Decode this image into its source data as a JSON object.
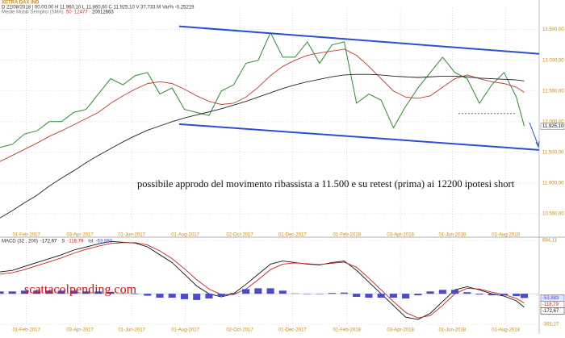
{
  "chart_data": [
    {
      "type": "line",
      "title": "XETRA DAX IND",
      "subtitle": "D 22/08/2018 | 00.00.00  H 11.960,10  L 11.860,60  C 11.925,10  V 37,733 M  Var% -0,25219",
      "sma_label": "Medie Mobili Semplici (SMA)",
      "annotation": "possibile approdo del movimento ribassista a 11.500 e su retest (prima) ai 12200 ipotesi short",
      "price_tag": "11.925,10",
      "x": [
        "2017-01-02",
        "2017-01-16",
        "2017-01-30",
        "2017-02-13",
        "2017-02-27",
        "2017-03-13",
        "2017-03-27",
        "2017-04-10",
        "2017-04-24",
        "2017-05-08",
        "2017-05-22",
        "2017-06-05",
        "2017-06-19",
        "2017-07-03",
        "2017-07-17",
        "2017-07-31",
        "2017-08-14",
        "2017-08-28",
        "2017-09-11",
        "2017-09-25",
        "2017-10-09",
        "2017-10-23",
        "2017-11-06",
        "2017-11-20",
        "2017-12-04",
        "2017-12-18",
        "2018-01-01",
        "2018-01-15",
        "2018-01-29",
        "2018-02-12",
        "2018-02-26",
        "2018-03-12",
        "2018-03-26",
        "2018-04-09",
        "2018-04-23",
        "2018-05-07",
        "2018-05-21",
        "2018-06-04",
        "2018-06-18",
        "2018-07-02",
        "2018-07-16",
        "2018-07-30",
        "2018-08-13",
        "2018-08-22"
      ],
      "xlim": [
        "2017-01-02",
        "2018-09-08"
      ],
      "xticks": [
        {
          "value": "2017-02-01",
          "label": "01-Feb-2017"
        },
        {
          "value": "2017-04-03",
          "label": "03-Apr-2017"
        },
        {
          "value": "2017-06-01",
          "label": "01-Jun-2017"
        },
        {
          "value": "2017-08-01",
          "label": "01-Aug-2017"
        },
        {
          "value": "2017-10-02",
          "label": "02-Oct-2017"
        },
        {
          "value": "2017-12-01",
          "label": "01-Dec-2017"
        },
        {
          "value": "2018-02-01",
          "label": "01-Feb-2018"
        },
        {
          "value": "2018-04-03",
          "label": "03-Apr-2018"
        },
        {
          "value": "2018-06-01",
          "label": "01-Jun-2018"
        },
        {
          "value": "2018-08-01",
          "label": "01-Aug-2018"
        }
      ],
      "ylim": [
        10250,
        13850
      ],
      "yticks": [
        {
          "value": 10500,
          "label": "10.500,00"
        },
        {
          "value": 11000,
          "label": "11.000,00"
        },
        {
          "value": 11500,
          "label": "11.500,00"
        },
        {
          "value": 12000,
          "label": "12.000,00"
        },
        {
          "value": 12500,
          "label": "12.500,00"
        },
        {
          "value": 13000,
          "label": "13.000,00"
        },
        {
          "value": 13500,
          "label": "13.500,00"
        }
      ],
      "grid": true,
      "series": [
        {
          "color": "#2e8b2e",
          "values": [
            11580,
            11630,
            11800,
            11850,
            12000,
            12000,
            12150,
            12200,
            12450,
            12700,
            12600,
            12750,
            12800,
            12450,
            12550,
            12200,
            12150,
            12100,
            12500,
            12600,
            12950,
            13000,
            13450,
            13050,
            13050,
            13300,
            12950,
            13250,
            13300,
            12300,
            12450,
            12350,
            11900,
            12250,
            12550,
            12800,
            13050,
            12800,
            12700,
            12300,
            12600,
            12800,
            12400,
            11925.1
          ]
        },
        {
          "name": "50",
          "tag": "12477",
          "color": "#c0392b",
          "values": [
            11350,
            11450,
            11550,
            11650,
            11760,
            11850,
            11950,
            12050,
            12150,
            12300,
            12420,
            12530,
            12620,
            12650,
            12620,
            12530,
            12420,
            12330,
            12280,
            12300,
            12400,
            12560,
            12750,
            12900,
            13000,
            13080,
            13120,
            13150,
            13180,
            13080,
            12900,
            12700,
            12500,
            12400,
            12380,
            12420,
            12560,
            12700,
            12760,
            12700,
            12650,
            12620,
            12560,
            12477
          ]
        },
        {
          "name": "200",
          "tag": "12663",
          "color": "#222222",
          "values": [
            10430,
            10550,
            10680,
            10800,
            10950,
            11080,
            11200,
            11330,
            11450,
            11560,
            11670,
            11770,
            11860,
            11930,
            12000,
            12060,
            12110,
            12160,
            12210,
            12270,
            12330,
            12400,
            12470,
            12540,
            12600,
            12650,
            12690,
            12730,
            12760,
            12770,
            12770,
            12760,
            12740,
            12730,
            12720,
            12730,
            12740,
            12740,
            12730,
            12710,
            12700,
            12690,
            12680,
            12663
          ]
        }
      ],
      "channels": [
        {
          "color": "#2a4fd6",
          "x": [
            "2017-07-25",
            "2018-09-08"
          ],
          "values": [
            13553,
            13105
          ]
        },
        {
          "color": "#2a4fd6",
          "x": [
            "2017-07-25",
            "2018-09-08"
          ],
          "values": [
            11960,
            11540
          ]
        }
      ],
      "support": {
        "color": "#333333",
        "x": [
          "2018-06-08",
          "2018-08-13"
        ],
        "values": [
          12130,
          12130
        ]
      }
    },
    {
      "type": "macd",
      "watermark": "scattacolpending.com",
      "x": [
        "2017-01-02",
        "2017-01-16",
        "2017-01-30",
        "2017-02-13",
        "2017-02-27",
        "2017-03-13",
        "2017-03-27",
        "2017-04-10",
        "2017-04-24",
        "2017-05-08",
        "2017-05-22",
        "2017-06-05",
        "2017-06-19",
        "2017-07-03",
        "2017-07-17",
        "2017-07-31",
        "2017-08-14",
        "2017-08-28",
        "2017-09-11",
        "2017-09-25",
        "2017-10-09",
        "2017-10-23",
        "2017-11-06",
        "2017-11-20",
        "2017-12-04",
        "2017-12-18",
        "2018-01-01",
        "2018-01-15",
        "2018-01-29",
        "2018-02-12",
        "2018-02-26",
        "2018-03-12",
        "2018-03-26",
        "2018-04-09",
        "2018-04-23",
        "2018-05-07",
        "2018-05-21",
        "2018-06-04",
        "2018-06-18",
        "2018-07-02",
        "2018-07-16",
        "2018-07-30",
        "2018-08-13",
        "2018-08-22"
      ],
      "xlim": [
        "2017-01-02",
        "2018-09-08"
      ],
      "xticks": [
        {
          "value": "2017-02-01",
          "label": "01-Feb-2017"
        },
        {
          "value": "2017-04-03",
          "label": "03-Apr-2017"
        },
        {
          "value": "2017-06-01",
          "label": "01-Jun-2017"
        },
        {
          "value": "2017-08-01",
          "label": "01-Aug-2017"
        },
        {
          "value": "2017-10-02",
          "label": "02-Oct-2017"
        },
        {
          "value": "2017-12-01",
          "label": "01-Dec-2017"
        },
        {
          "value": "2018-02-01",
          "label": "01-Feb-2018"
        },
        {
          "value": "2018-04-03",
          "label": "03-Apr-2018"
        },
        {
          "value": "2018-06-01",
          "label": "01-Jun-2018"
        },
        {
          "value": "2018-08-01",
          "label": "01-Aug-2018"
        }
      ],
      "ylim": [
        -391.27,
        684.11
      ],
      "yticks": [
        {
          "value": 684.11,
          "label": "684,11"
        },
        {
          "value": -391.27,
          "label": "-391,27"
        }
      ],
      "grid": true,
      "series": [
        {
          "name": "MACD (32 , 200)",
          "tag": "-172,67",
          "color": "#111111",
          "values": [
            280,
            300,
            350,
            400,
            450,
            500,
            560,
            600,
            640,
            670,
            660,
            650,
            600,
            500,
            400,
            250,
            100,
            0,
            -40,
            0,
            120,
            250,
            380,
            420,
            400,
            380,
            370,
            400,
            420,
            300,
            150,
            0,
            -150,
            -300,
            -330,
            -250,
            -100,
            50,
            90,
            50,
            0,
            -30,
            -90,
            -172.67
          ]
        },
        {
          "name": "S",
          "tag": "-118,79",
          "color": "#cc2222",
          "values": [
            250,
            270,
            310,
            360,
            410,
            460,
            520,
            570,
            610,
            645,
            655,
            655,
            625,
            550,
            450,
            320,
            180,
            60,
            -10,
            -10,
            60,
            180,
            310,
            380,
            395,
            385,
            375,
            390,
            405,
            340,
            200,
            50,
            -100,
            -240,
            -310,
            -280,
            -150,
            0,
            70,
            60,
            20,
            -10,
            -60,
            -118.79
          ]
        },
        {
          "name": "Ist",
          "tag": "-53,883",
          "color": "#4a4ad0",
          "kind": "histogram",
          "values": [
            30,
            30,
            40,
            40,
            40,
            40,
            40,
            30,
            30,
            25,
            5,
            -5,
            -25,
            -50,
            -50,
            -70,
            -80,
            -60,
            -30,
            10,
            60,
            70,
            70,
            40,
            5,
            -5,
            -5,
            10,
            15,
            -40,
            -50,
            -50,
            -50,
            -60,
            -20,
            30,
            50,
            50,
            20,
            -10,
            -20,
            -20,
            -30,
            -53.883
          ]
        }
      ]
    }
  ]
}
